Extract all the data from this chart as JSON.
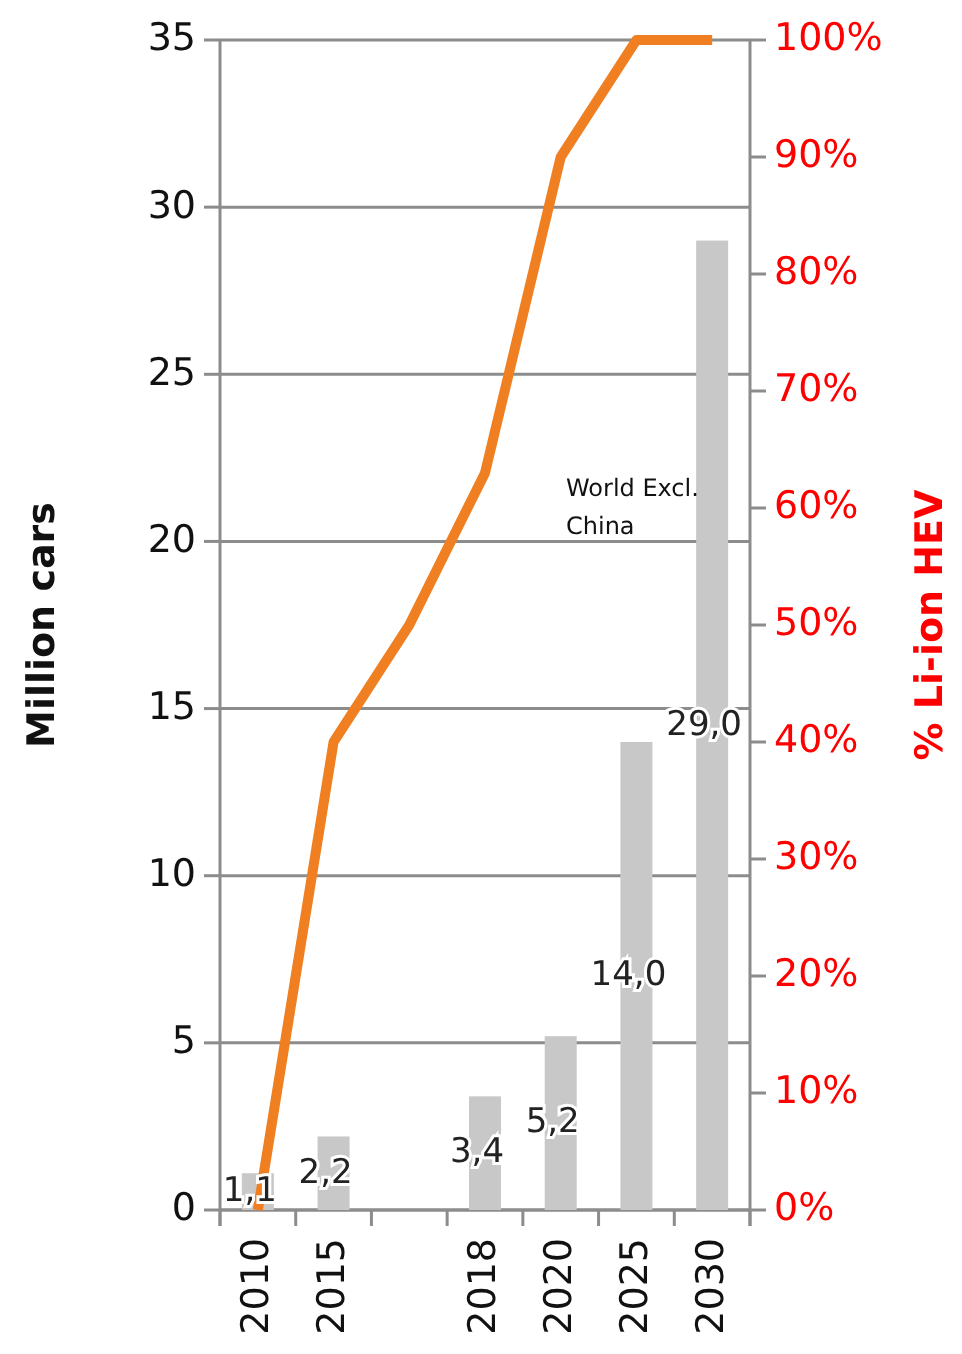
{
  "chart_data": {
    "type": "bar",
    "categories": [
      "2010",
      "2015",
      null,
      "2018",
      "2020",
      "2025",
      "2030"
    ],
    "ylabel": "Million cars",
    "y2label": "% Li-ion HEV",
    "ylim": [
      0,
      35
    ],
    "yticks": [
      0,
      5,
      10,
      15,
      20,
      25,
      30,
      35
    ],
    "y2lim": [
      0,
      100
    ],
    "y2ticks": [
      {
        "value": 0,
        "label": "0%"
      },
      {
        "value": 10,
        "label": "10%"
      },
      {
        "value": 20,
        "label": "20%"
      },
      {
        "value": 30,
        "label": "30%"
      },
      {
        "value": 40,
        "label": "40%"
      },
      {
        "value": 50,
        "label": "50%"
      },
      {
        "value": 60,
        "label": "60%"
      },
      {
        "value": 70,
        "label": "70%"
      },
      {
        "value": 80,
        "label": "80%"
      },
      {
        "value": 90,
        "label": "90%"
      },
      {
        "value": 100,
        "label": "100%"
      }
    ],
    "grid": "y",
    "series": [
      {
        "color": "#c8c8c8",
        "values": [
          1.1,
          2.2,
          null,
          3.4,
          5.2,
          14.0,
          29.0
        ],
        "value_labels": [
          "1,1",
          "2,2",
          null,
          "3,4",
          "5,2",
          "14,0",
          "29,0"
        ]
      },
      {
        "type": "line",
        "axis": "y2",
        "color": "#f07f22",
        "values": [
          0,
          40,
          50,
          63,
          90,
          100,
          100
        ]
      }
    ],
    "annotations": [
      "World Excl. China"
    ]
  }
}
